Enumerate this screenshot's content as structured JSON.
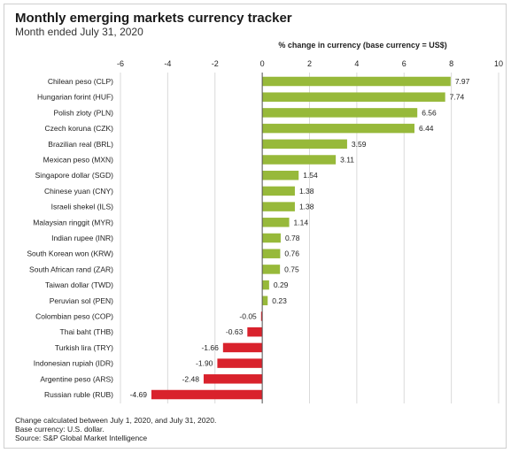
{
  "header": {
    "title": "Monthly emerging markets currency tracker",
    "subtitle": "Month ended July 31, 2020"
  },
  "chart_data": {
    "type": "bar",
    "orientation": "horizontal",
    "xlabel": "% change in currency (base currency = US$)",
    "xlim": [
      -6,
      10
    ],
    "xticks": [
      -6,
      -4,
      -2,
      0,
      2,
      4,
      6,
      8,
      10
    ],
    "tick_labels": [
      "-6",
      "-4",
      "-2",
      "0",
      "2",
      "4",
      "6",
      "8",
      "10"
    ],
    "grid": true,
    "colors": {
      "positive": "#97b93a",
      "negative": "#d9222c",
      "grid": "#dadada"
    },
    "categories": [
      "Chilean peso (CLP)",
      "Hungarian forint (HUF)",
      "Polish zloty (PLN)",
      "Czech koruna (CZK)",
      "Brazilian real (BRL)",
      "Mexican peso (MXN)",
      "Singapore dollar (SGD)",
      "Chinese yuan (CNY)",
      "Israeli shekel (ILS)",
      "Malaysian ringgit (MYR)",
      "Indian rupee (INR)",
      "South Korean won (KRW)",
      "South African rand (ZAR)",
      "Taiwan dollar (TWD)",
      "Peruvian sol (PEN)",
      "Colombian peso (COP)",
      "Thai baht (THB)",
      "Turkish lira (TRY)",
      "Indonesian rupiah (IDR)",
      "Argentine peso (ARS)",
      "Russian ruble (RUB)"
    ],
    "values": [
      7.97,
      7.74,
      6.56,
      6.44,
      3.59,
      3.11,
      1.54,
      1.38,
      1.38,
      1.14,
      0.78,
      0.76,
      0.75,
      0.29,
      0.23,
      -0.05,
      -0.63,
      -1.66,
      -1.9,
      -2.48,
      -4.69
    ],
    "value_labels": [
      "7.97",
      "7.74",
      "6.56",
      "6.44",
      "3.59",
      "3.11",
      "1.54",
      "1.38",
      "1.38",
      "1.14",
      "0.78",
      "0.76",
      "0.75",
      "0.29",
      "0.23",
      "-0.05",
      "-0.63",
      "-1.66",
      "-1.90",
      "-2.48",
      "-4.69"
    ]
  },
  "footer": {
    "note1": "Change calculated between July 1, 2020, and July 31, 2020.",
    "note2": "Base currency: U.S. dollar.",
    "note3": "Source: S&P Global Market Intelligence"
  }
}
